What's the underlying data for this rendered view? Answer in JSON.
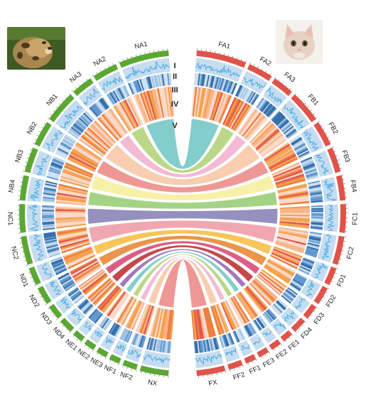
{
  "figure": {
    "track_labels": [
      "I",
      "II",
      "III",
      "IV",
      "V"
    ],
    "left_genome": {
      "chromosomes": [
        "NA1",
        "NA2",
        "NA3",
        "NB1",
        "NB2",
        "NB3",
        "NB4",
        "NC1",
        "NC2",
        "ND1",
        "ND2",
        "ND3",
        "ND4",
        "NE1",
        "NE2",
        "NE3",
        "NF1",
        "NF2",
        "NX"
      ],
      "spans": [
        14,
        7,
        6,
        9,
        7,
        7,
        7,
        8,
        8,
        5,
        5,
        4,
        4,
        3,
        3,
        3,
        3,
        4,
        8
      ],
      "color": "#5aa832",
      "photo": "clouded-leopard-photo"
    },
    "right_genome": {
      "chromosomes": [
        "FA1",
        "FA2",
        "FA3",
        "FB1",
        "FB2",
        "FB3",
        "FB4",
        "FC1",
        "FC2",
        "FD1",
        "FD2",
        "FD3",
        "FD4",
        "FE1",
        "FE2",
        "FE3",
        "FF1",
        "FF2",
        "FX"
      ],
      "spans": [
        14,
        7,
        6,
        9,
        7,
        7,
        7,
        8,
        8,
        5,
        5,
        4,
        4,
        3,
        3,
        3,
        3,
        4,
        8
      ],
      "color": "#e0534a",
      "photo": "domestic-cat-photo"
    },
    "colors": {
      "track2_line": "#2fa3e6",
      "track2_bg": "#c6dcef",
      "track3_dark": "#3f7fbf",
      "track4_palette": [
        "#fbd9c8",
        "#f8b487",
        "#f3a04a",
        "#ee7a3a",
        "#e0534a"
      ],
      "link_palette": [
        "#78c9c8",
        "#b4d57d",
        "#f3b4cf",
        "#f8c9a8",
        "#ed8f8d",
        "#f6f0a0",
        "#9dcf7c",
        "#8c88b8",
        "#f0a0a8",
        "#f6c04a",
        "#e88c3c",
        "#d9507a",
        "#c03a3a",
        "#9a6bb5"
      ]
    }
  }
}
